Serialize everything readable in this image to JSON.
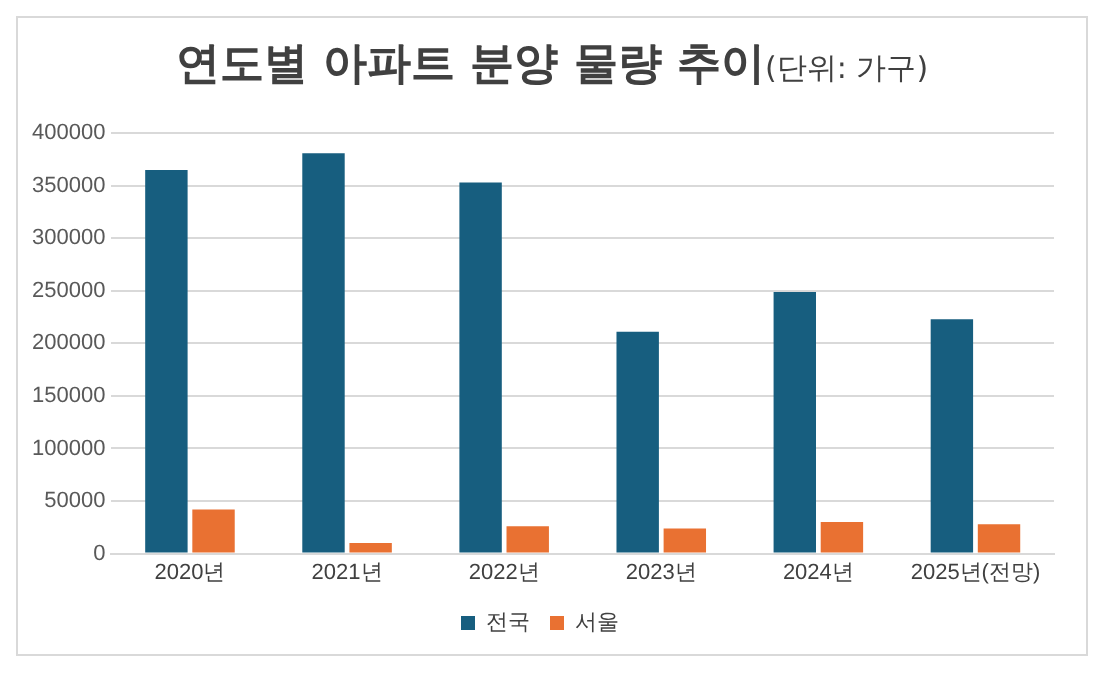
{
  "chart_data": {
    "type": "bar",
    "title": "연도별 아파트 분양 물량 추이",
    "subtitle": "(단위: 가구)",
    "categories": [
      "2020년",
      "2021년",
      "2022년",
      "2023년",
      "2024년",
      "2025년(전망)"
    ],
    "series": [
      {
        "name": "전국",
        "color": "#175e7f",
        "values": [
          365000,
          381000,
          353000,
          211000,
          249000,
          223000
        ]
      },
      {
        "name": "서울",
        "color": "#e97132",
        "values": [
          42000,
          10000,
          26000,
          24000,
          30000,
          28000
        ]
      }
    ],
    "ylim": [
      0,
      400000
    ],
    "yticks": [
      0,
      50000,
      100000,
      150000,
      200000,
      250000,
      300000,
      350000,
      400000
    ],
    "grid": "y",
    "legend": "bottom"
  }
}
